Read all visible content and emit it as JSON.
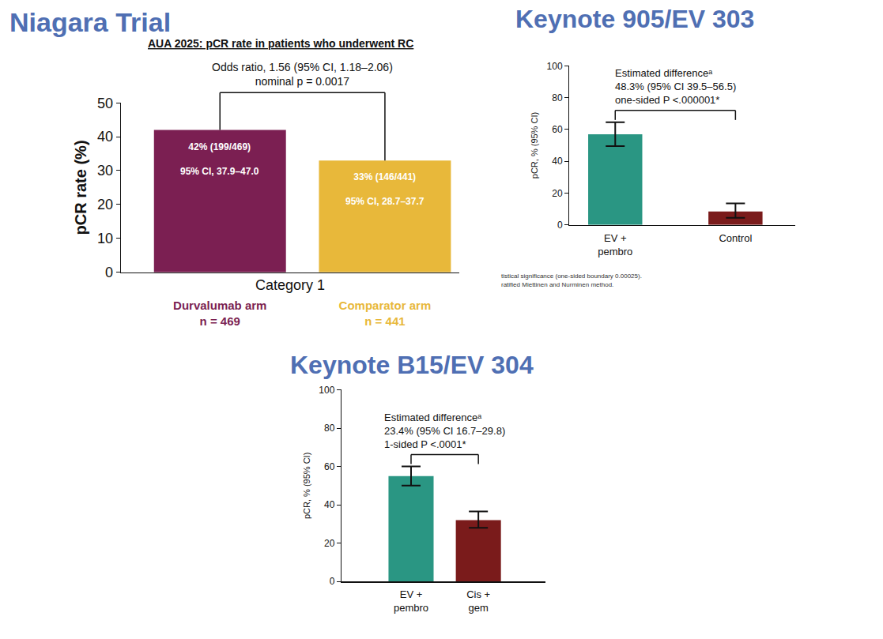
{
  "chart_data": [
    {
      "type": "bar",
      "title": "Niagara Trial",
      "subtitle": "AUA 2025: pCR rate in patients who underwent RC",
      "annotation": "Odds ratio, 1.56 (95% CI, 1.18–2.06)\nnominal p = 0.0017",
      "x_label": "Category 1",
      "y_label": "pCR rate (%)",
      "categories": [
        "Durvalumab arm\nn = 469",
        "Comparator arm\nn = 441"
      ],
      "values": [
        42,
        33
      ],
      "value_labels": [
        "42% (199/469)",
        "33% (146/441)"
      ],
      "ci_labels": [
        "95% CI, 37.9–47.0",
        "95% CI, 28.7–37.7"
      ],
      "colors": [
        "#7b1f52",
        "#e8b83a"
      ],
      "data_labels": true,
      "ylim": [
        0,
        50
      ],
      "yticks": [
        0,
        10,
        20,
        30,
        40,
        50
      ],
      "grid": false
    },
    {
      "type": "bar",
      "title": "Keynote 905/EV 303",
      "annotation": "Estimated differenceᵃ\n48.3% (95% CI 39.5–56.5)\none-sided P <.000001*",
      "y_label": "pCR, % (95% CI)",
      "categories": [
        "EV +\npembro",
        "Control"
      ],
      "values": [
        57,
        8.5
      ],
      "ci_low": [
        49.5,
        4.5
      ],
      "ci_high": [
        64.5,
        13.5
      ],
      "colors": [
        "#2a9683",
        "#7a1b1b"
      ],
      "footnotes": [
        "tistical significance (one-sided boundary 0.00025).",
        "ratified Miettinen and Nurminen method."
      ],
      "ylim": [
        0,
        100
      ],
      "yticks": [
        0,
        20,
        40,
        60,
        80,
        100
      ],
      "grid": false
    },
    {
      "type": "bar",
      "title": "Keynote B15/EV 304",
      "annotation": "Estimated differenceᵃ\n23.4% (95% CI 16.7–29.8)\n1-sided P <.0001*",
      "y_label": "pCR, % (95% CI)",
      "categories": [
        "EV +\npembro",
        "Cis +\ngem"
      ],
      "values": [
        55,
        32
      ],
      "ci_low": [
        50,
        28
      ],
      "ci_high": [
        60,
        36.5
      ],
      "colors": [
        "#2a9683",
        "#7a1b1b"
      ],
      "ylim": [
        0,
        100
      ],
      "yticks": [
        0,
        20,
        40,
        60,
        80,
        100
      ],
      "grid": false
    }
  ]
}
